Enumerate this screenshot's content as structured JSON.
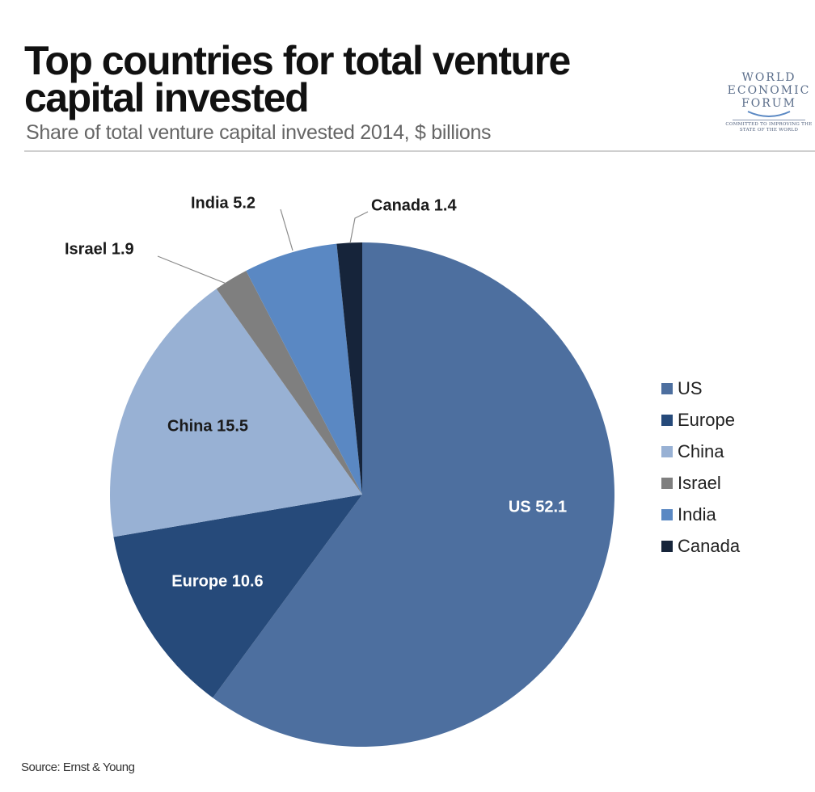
{
  "header": {
    "title": "Top countries for total venture capital invested",
    "subtitle": "Share of total venture capital invested 2014, $ billions"
  },
  "logo": {
    "line1": "WORLD",
    "line2": "ECONOMIC",
    "line3": "FORUM",
    "tagline": "COMMITTED TO IMPROVING THE STATE OF THE WORLD"
  },
  "chart_data": {
    "type": "pie",
    "title": "Top countries for total venture capital invested",
    "subtitle": "Share of total venture capital invested 2014, $ billions",
    "categories": [
      "US",
      "Europe",
      "China",
      "Israel",
      "India",
      "Canada"
    ],
    "values": [
      52.1,
      10.6,
      15.5,
      1.9,
      5.2,
      1.4
    ],
    "colors": [
      "#4d6f9f",
      "#264a7a",
      "#98b1d4",
      "#7f7f7f",
      "#5a88c3",
      "#16243a"
    ],
    "data_labels": [
      "US  52.1",
      "Europe  10.6",
      "China  15.5",
      "Israel  1.9",
      "India  5.2",
      "Canada  1.4"
    ],
    "legend": {
      "position": "right",
      "entries": [
        "US",
        "Europe",
        "China",
        "Israel",
        "India",
        "Canada"
      ]
    },
    "start": "12 o'clock, clockwise"
  },
  "source": "Source: Ernst & Young"
}
